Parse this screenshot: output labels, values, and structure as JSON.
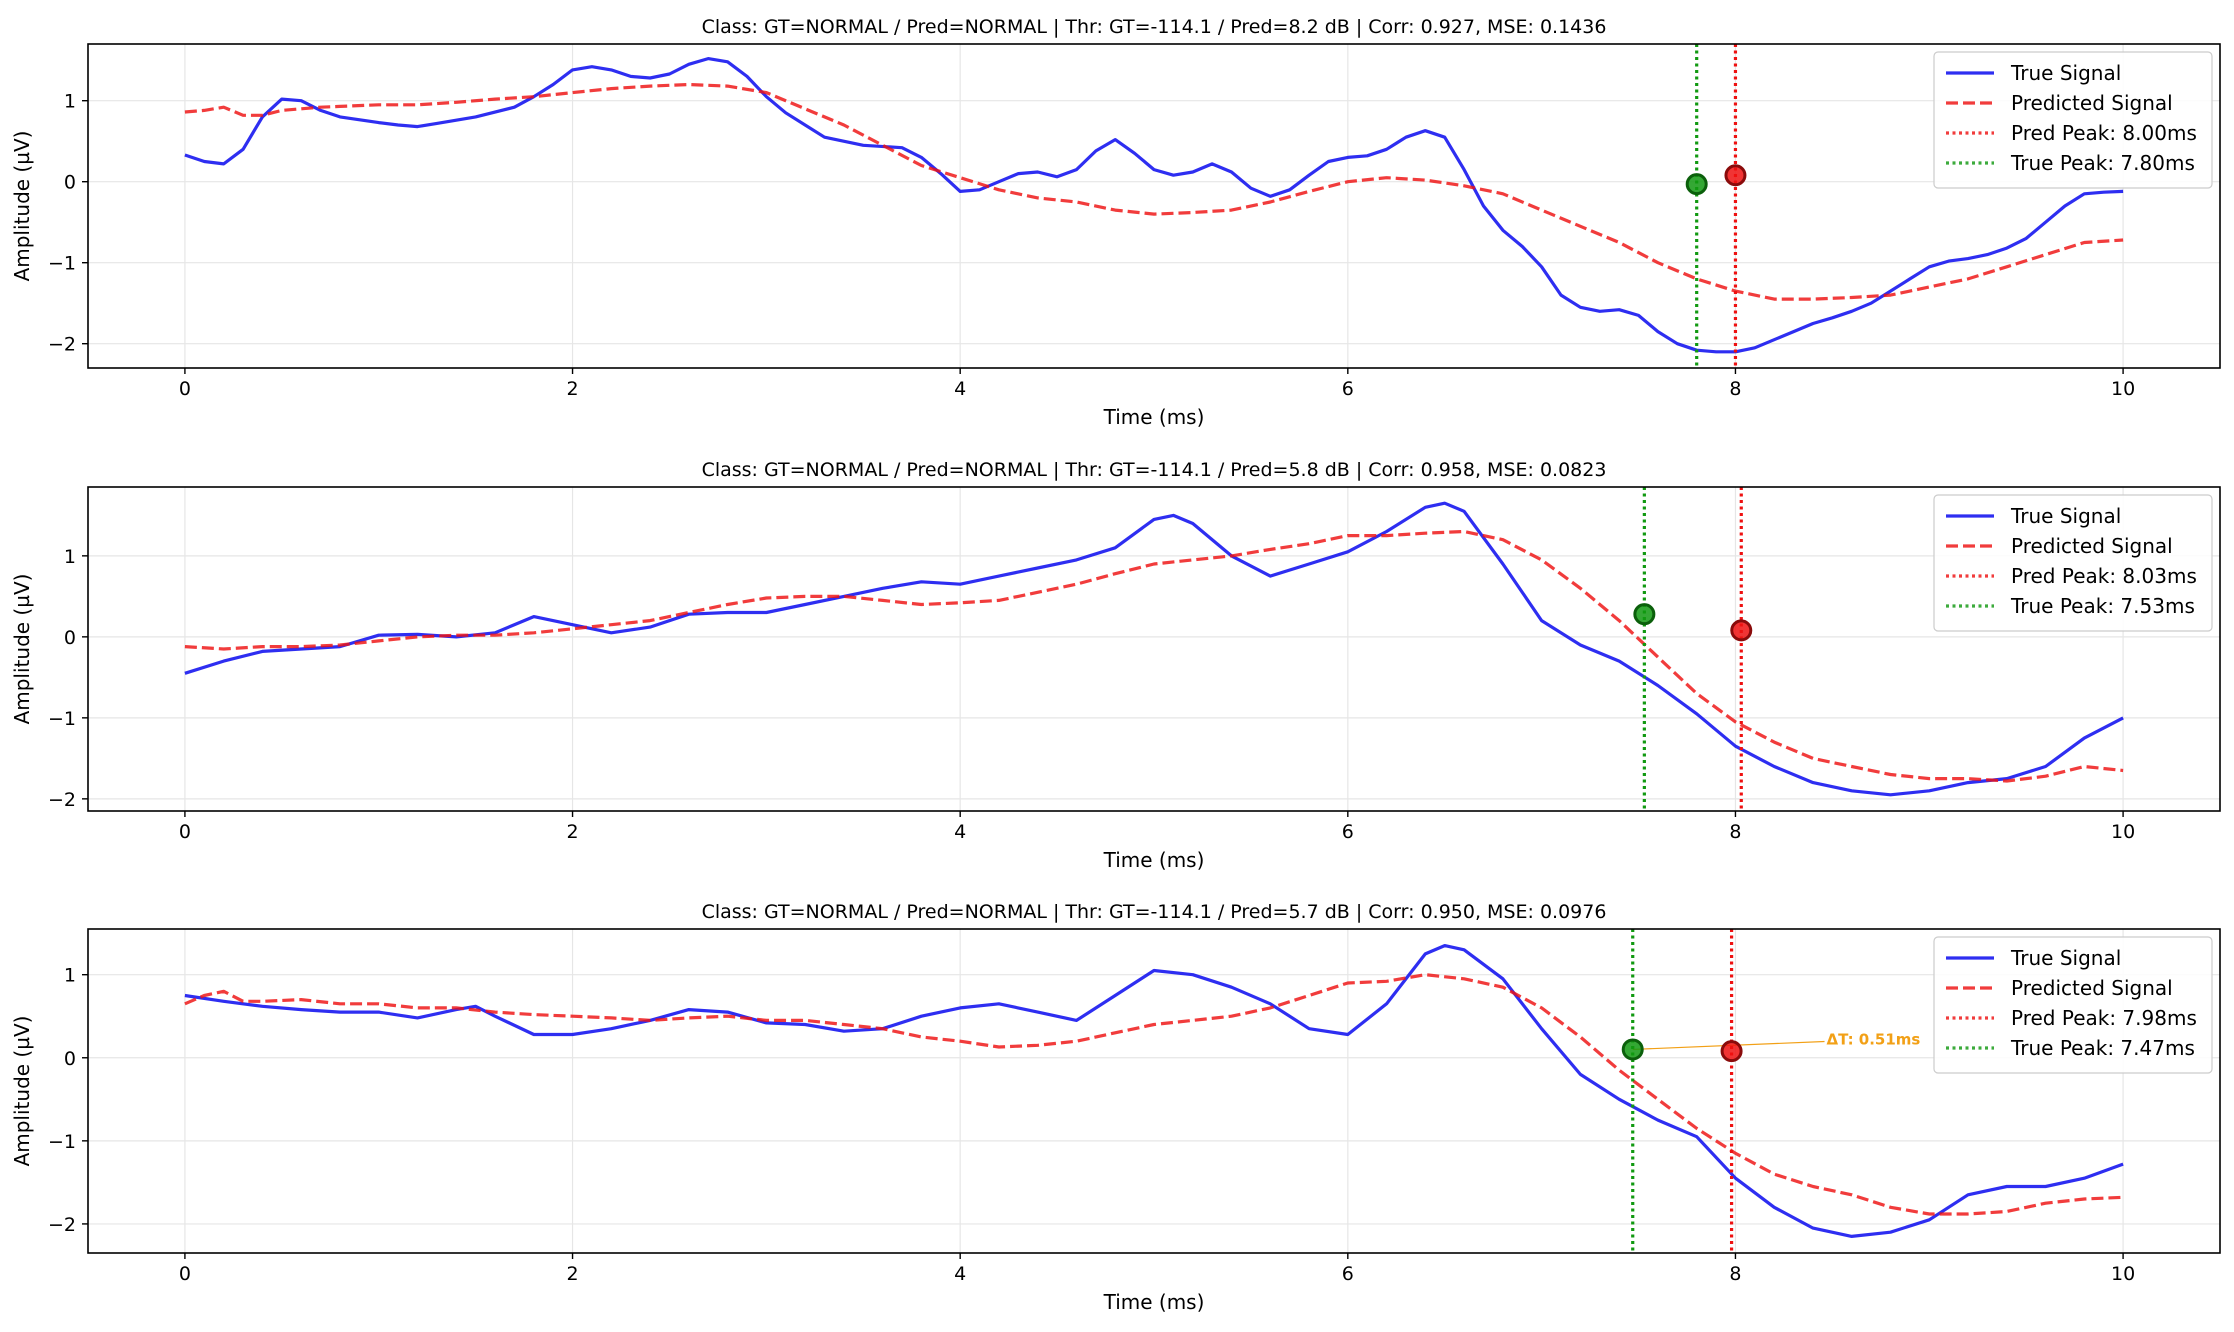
{
  "chart_data": [
    {
      "type": "line",
      "title": "Class: GT=NORMAL / Pred=NORMAL | Thr: GT=-114.1 / Pred=8.2 dB | Corr: 0.927, MSE: 0.1436",
      "xlabel": "Time (ms)",
      "ylabel": "Amplitude (µV)",
      "xlim": [
        -0.5,
        10.5
      ],
      "ylim": [
        -2.3,
        1.7
      ],
      "xticks": [
        0,
        2,
        4,
        6,
        8,
        10
      ],
      "yticks": [
        -2,
        -1,
        0,
        1
      ],
      "grid": true,
      "legend_position": "top-right",
      "series": [
        {
          "name": "True Signal",
          "color": "#0000ee",
          "style": "solid",
          "x": [
            0,
            0.1,
            0.2,
            0.3,
            0.4,
            0.5,
            0.6,
            0.7,
            0.8,
            1.0,
            1.1,
            1.2,
            1.3,
            1.5,
            1.7,
            1.8,
            1.9,
            2.0,
            2.1,
            2.2,
            2.3,
            2.4,
            2.5,
            2.6,
            2.7,
            2.8,
            2.9,
            3.0,
            3.1,
            3.3,
            3.5,
            3.7,
            3.8,
            3.9,
            4.0,
            4.1,
            4.2,
            4.3,
            4.4,
            4.5,
            4.6,
            4.7,
            4.8,
            4.9,
            5.0,
            5.1,
            5.2,
            5.3,
            5.4,
            5.5,
            5.6,
            5.7,
            5.8,
            5.9,
            6.0,
            6.1,
            6.2,
            6.3,
            6.4,
            6.5,
            6.6,
            6.7,
            6.8,
            6.9,
            7.0,
            7.1,
            7.2,
            7.3,
            7.4,
            7.5,
            7.6,
            7.7,
            7.8,
            7.9,
            8.0,
            8.1,
            8.2,
            8.3,
            8.4,
            8.5,
            8.6,
            8.7,
            8.8,
            8.9,
            9.0,
            9.1,
            9.2,
            9.3,
            9.4,
            9.5,
            9.6,
            9.7,
            9.8,
            9.9,
            10.0
          ],
          "y": [
            0.33,
            0.25,
            0.22,
            0.4,
            0.8,
            1.02,
            1.0,
            0.88,
            0.8,
            0.73,
            0.7,
            0.68,
            0.72,
            0.8,
            0.92,
            1.05,
            1.2,
            1.38,
            1.42,
            1.38,
            1.3,
            1.28,
            1.33,
            1.45,
            1.52,
            1.48,
            1.3,
            1.05,
            0.85,
            0.55,
            0.45,
            0.42,
            0.3,
            0.1,
            -0.12,
            -0.1,
            0.0,
            0.1,
            0.12,
            0.06,
            0.15,
            0.38,
            0.52,
            0.35,
            0.15,
            0.08,
            0.12,
            0.22,
            0.12,
            -0.08,
            -0.18,
            -0.1,
            0.08,
            0.25,
            0.3,
            0.32,
            0.4,
            0.55,
            0.63,
            0.55,
            0.15,
            -0.3,
            -0.6,
            -0.8,
            -1.05,
            -1.4,
            -1.55,
            -1.6,
            -1.58,
            -1.65,
            -1.85,
            -2.0,
            -2.08,
            -2.1,
            -2.1,
            -2.05,
            -1.95,
            -1.85,
            -1.75,
            -1.68,
            -1.6,
            -1.5,
            -1.35,
            -1.2,
            -1.05,
            -0.98,
            -0.95,
            -0.9,
            -0.82,
            -0.7,
            -0.5,
            -0.3,
            -0.15,
            -0.13,
            -0.12
          ]
        },
        {
          "name": "Predicted Signal",
          "color": "#ee1111",
          "style": "dashed",
          "x": [
            0,
            0.1,
            0.2,
            0.3,
            0.4,
            0.5,
            0.6,
            0.7,
            0.8,
            1.0,
            1.2,
            1.4,
            1.6,
            1.8,
            2.0,
            2.2,
            2.4,
            2.6,
            2.8,
            3.0,
            3.2,
            3.4,
            3.6,
            3.8,
            4.0,
            4.2,
            4.4,
            4.6,
            4.8,
            5.0,
            5.2,
            5.4,
            5.6,
            5.8,
            6.0,
            6.2,
            6.4,
            6.6,
            6.8,
            7.0,
            7.2,
            7.4,
            7.6,
            7.8,
            8.0,
            8.2,
            8.4,
            8.6,
            8.8,
            9.0,
            9.2,
            9.4,
            9.6,
            9.8,
            10.0
          ],
          "y": [
            0.86,
            0.88,
            0.92,
            0.82,
            0.82,
            0.88,
            0.9,
            0.92,
            0.93,
            0.95,
            0.95,
            0.98,
            1.02,
            1.05,
            1.1,
            1.15,
            1.18,
            1.2,
            1.18,
            1.1,
            0.9,
            0.7,
            0.45,
            0.2,
            0.05,
            -0.1,
            -0.2,
            -0.25,
            -0.35,
            -0.4,
            -0.38,
            -0.35,
            -0.25,
            -0.12,
            0.0,
            0.05,
            0.02,
            -0.05,
            -0.15,
            -0.35,
            -0.55,
            -0.75,
            -1.0,
            -1.2,
            -1.35,
            -1.45,
            -1.45,
            -1.43,
            -1.4,
            -1.3,
            -1.2,
            -1.05,
            -0.9,
            -0.75,
            -0.72
          ]
        },
        {
          "name": "Pred Peak: 8.00ms",
          "color": "#ee1111",
          "style": "dotted",
          "vline_x": 8.0
        },
        {
          "name": "True Peak: 7.80ms",
          "color": "#119911",
          "style": "dotted",
          "vline_x": 7.8
        }
      ],
      "markers": [
        {
          "x": 7.8,
          "y": -0.03,
          "color": "#119911"
        },
        {
          "x": 8.0,
          "y": 0.08,
          "color": "#ee1111"
        }
      ]
    },
    {
      "type": "line",
      "title": "Class: GT=NORMAL / Pred=NORMAL | Thr: GT=-114.1 / Pred=5.8 dB | Corr: 0.958, MSE: 0.0823",
      "xlabel": "Time (ms)",
      "ylabel": "Amplitude (µV)",
      "xlim": [
        -0.5,
        10.5
      ],
      "ylim": [
        -2.15,
        1.85
      ],
      "xticks": [
        0,
        2,
        4,
        6,
        8,
        10
      ],
      "yticks": [
        -2,
        -1,
        0,
        1
      ],
      "grid": true,
      "legend_position": "top-right",
      "series": [
        {
          "name": "True Signal",
          "color": "#0000ee",
          "style": "solid",
          "x": [
            0,
            0.2,
            0.4,
            0.6,
            0.8,
            1.0,
            1.2,
            1.4,
            1.6,
            1.8,
            2.0,
            2.2,
            2.4,
            2.6,
            2.8,
            3.0,
            3.2,
            3.4,
            3.6,
            3.8,
            4.0,
            4.2,
            4.4,
            4.6,
            4.8,
            5.0,
            5.1,
            5.2,
            5.4,
            5.6,
            5.8,
            6.0,
            6.2,
            6.4,
            6.5,
            6.6,
            6.8,
            7.0,
            7.2,
            7.4,
            7.6,
            7.8,
            8.0,
            8.2,
            8.4,
            8.6,
            8.8,
            9.0,
            9.2,
            9.4,
            9.6,
            9.8,
            10.0
          ],
          "y": [
            -0.45,
            -0.3,
            -0.18,
            -0.15,
            -0.12,
            0.02,
            0.03,
            0.0,
            0.05,
            0.25,
            0.15,
            0.05,
            0.12,
            0.28,
            0.3,
            0.3,
            0.4,
            0.5,
            0.6,
            0.68,
            0.65,
            0.75,
            0.85,
            0.95,
            1.1,
            1.45,
            1.5,
            1.4,
            1.0,
            0.75,
            0.9,
            1.05,
            1.3,
            1.6,
            1.65,
            1.55,
            0.9,
            0.2,
            -0.1,
            -0.3,
            -0.6,
            -0.95,
            -1.35,
            -1.6,
            -1.8,
            -1.9,
            -1.95,
            -1.9,
            -1.8,
            -1.75,
            -1.6,
            -1.25,
            -1.0
          ]
        },
        {
          "name": "Predicted Signal",
          "color": "#ee1111",
          "style": "dashed",
          "x": [
            0,
            0.2,
            0.4,
            0.6,
            0.8,
            1.0,
            1.2,
            1.4,
            1.6,
            1.8,
            2.0,
            2.2,
            2.4,
            2.6,
            2.8,
            3.0,
            3.2,
            3.4,
            3.6,
            3.8,
            4.0,
            4.2,
            4.4,
            4.6,
            4.8,
            5.0,
            5.2,
            5.4,
            5.6,
            5.8,
            6.0,
            6.2,
            6.4,
            6.6,
            6.8,
            7.0,
            7.2,
            7.4,
            7.6,
            7.8,
            8.0,
            8.2,
            8.4,
            8.6,
            8.8,
            9.0,
            9.2,
            9.4,
            9.6,
            9.8,
            10.0
          ],
          "y": [
            -0.12,
            -0.15,
            -0.12,
            -0.12,
            -0.1,
            -0.05,
            0.0,
            0.02,
            0.02,
            0.05,
            0.1,
            0.15,
            0.2,
            0.3,
            0.4,
            0.48,
            0.5,
            0.5,
            0.45,
            0.4,
            0.42,
            0.45,
            0.55,
            0.65,
            0.78,
            0.9,
            0.95,
            1.0,
            1.08,
            1.15,
            1.25,
            1.25,
            1.28,
            1.3,
            1.2,
            0.95,
            0.6,
            0.2,
            -0.25,
            -0.7,
            -1.05,
            -1.3,
            -1.5,
            -1.6,
            -1.7,
            -1.75,
            -1.75,
            -1.78,
            -1.72,
            -1.6,
            -1.65
          ]
        },
        {
          "name": "Pred Peak: 8.03ms",
          "color": "#ee1111",
          "style": "dotted",
          "vline_x": 8.03
        },
        {
          "name": "True Peak: 7.53ms",
          "color": "#119911",
          "style": "dotted",
          "vline_x": 7.53
        }
      ],
      "markers": [
        {
          "x": 7.53,
          "y": 0.28,
          "color": "#119911"
        },
        {
          "x": 8.03,
          "y": 0.08,
          "color": "#ee1111"
        }
      ]
    },
    {
      "type": "line",
      "title": "Class: GT=NORMAL / Pred=NORMAL | Thr: GT=-114.1 / Pred=5.7 dB | Corr: 0.950, MSE: 0.0976",
      "xlabel": "Time (ms)",
      "ylabel": "Amplitude (µV)",
      "xlim": [
        -0.5,
        10.5
      ],
      "ylim": [
        -2.35,
        1.55
      ],
      "xticks": [
        0,
        2,
        4,
        6,
        8,
        10
      ],
      "yticks": [
        -2,
        -1,
        0,
        1
      ],
      "grid": true,
      "legend_position": "top-right",
      "series": [
        {
          "name": "True Signal",
          "color": "#0000ee",
          "style": "solid",
          "x": [
            0,
            0.2,
            0.4,
            0.6,
            0.8,
            1.0,
            1.2,
            1.4,
            1.5,
            1.6,
            1.8,
            2.0,
            2.2,
            2.4,
            2.6,
            2.8,
            3.0,
            3.2,
            3.4,
            3.6,
            3.8,
            4.0,
            4.2,
            4.4,
            4.6,
            4.8,
            5.0,
            5.2,
            5.4,
            5.6,
            5.8,
            6.0,
            6.2,
            6.4,
            6.5,
            6.6,
            6.8,
            7.0,
            7.2,
            7.4,
            7.6,
            7.8,
            8.0,
            8.2,
            8.4,
            8.6,
            8.8,
            9.0,
            9.2,
            9.4,
            9.6,
            9.8,
            10.0
          ],
          "y": [
            0.75,
            0.68,
            0.62,
            0.58,
            0.55,
            0.55,
            0.48,
            0.58,
            0.62,
            0.5,
            0.28,
            0.28,
            0.35,
            0.45,
            0.58,
            0.55,
            0.42,
            0.4,
            0.32,
            0.35,
            0.5,
            0.6,
            0.65,
            0.55,
            0.45,
            0.75,
            1.05,
            1.0,
            0.85,
            0.65,
            0.35,
            0.28,
            0.65,
            1.25,
            1.35,
            1.3,
            0.95,
            0.35,
            -0.2,
            -0.5,
            -0.75,
            -0.95,
            -1.45,
            -1.8,
            -2.05,
            -2.15,
            -2.1,
            -1.95,
            -1.65,
            -1.55,
            -1.55,
            -1.45,
            -1.28
          ]
        },
        {
          "name": "Predicted Signal",
          "color": "#ee1111",
          "style": "dashed",
          "x": [
            0,
            0.1,
            0.2,
            0.3,
            0.4,
            0.6,
            0.8,
            1.0,
            1.2,
            1.4,
            1.6,
            1.8,
            2.0,
            2.2,
            2.4,
            2.6,
            2.8,
            3.0,
            3.2,
            3.4,
            3.6,
            3.8,
            4.0,
            4.2,
            4.4,
            4.6,
            4.8,
            5.0,
            5.2,
            5.4,
            5.6,
            5.8,
            6.0,
            6.2,
            6.4,
            6.6,
            6.8,
            7.0,
            7.2,
            7.4,
            7.6,
            7.8,
            8.0,
            8.2,
            8.4,
            8.6,
            8.8,
            9.0,
            9.2,
            9.4,
            9.6,
            9.8,
            10.0
          ],
          "y": [
            0.65,
            0.75,
            0.8,
            0.68,
            0.68,
            0.7,
            0.65,
            0.65,
            0.6,
            0.6,
            0.55,
            0.52,
            0.5,
            0.48,
            0.45,
            0.48,
            0.5,
            0.45,
            0.45,
            0.4,
            0.35,
            0.25,
            0.2,
            0.13,
            0.15,
            0.2,
            0.3,
            0.4,
            0.45,
            0.5,
            0.6,
            0.75,
            0.9,
            0.92,
            1.0,
            0.95,
            0.85,
            0.6,
            0.25,
            -0.15,
            -0.5,
            -0.85,
            -1.15,
            -1.4,
            -1.55,
            -1.65,
            -1.8,
            -1.88,
            -1.88,
            -1.85,
            -1.75,
            -1.7,
            -1.68
          ]
        },
        {
          "name": "Pred Peak: 7.98ms",
          "color": "#ee1111",
          "style": "dotted",
          "vline_x": 7.98
        },
        {
          "name": "True Peak: 7.47ms",
          "color": "#119911",
          "style": "dotted",
          "vline_x": 7.47
        }
      ],
      "markers": [
        {
          "x": 7.47,
          "y": 0.1,
          "color": "#119911"
        },
        {
          "x": 7.98,
          "y": 0.08,
          "color": "#ee1111"
        }
      ],
      "annotation": {
        "text": "ΔT: 0.51ms",
        "x": 8.47,
        "y": 0.22,
        "from_x": 7.47,
        "from_y": 0.1,
        "color": "#f2a016"
      }
    }
  ]
}
